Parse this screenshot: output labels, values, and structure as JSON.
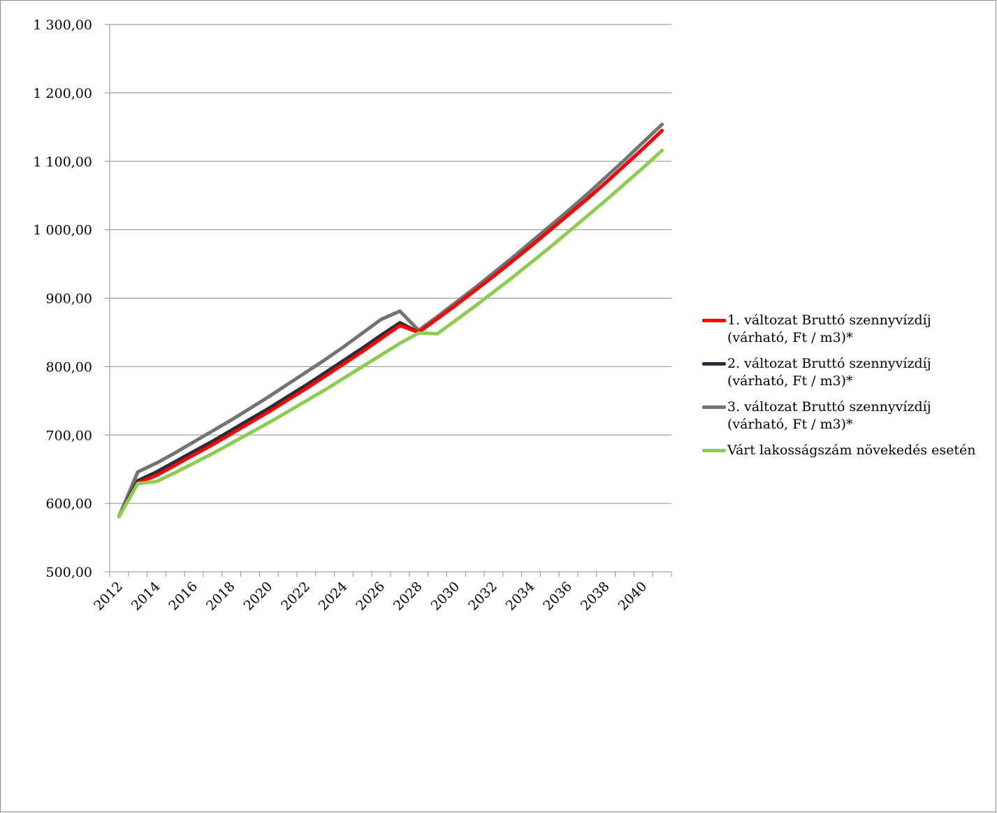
{
  "chart_data": {
    "type": "line",
    "title": "",
    "xlabel": "",
    "ylabel": "",
    "ylim": [
      500,
      1300
    ],
    "yticks": [
      "500,00",
      "600,00",
      "700,00",
      "800,00",
      "900,00",
      "1 000,00",
      "1 100,00",
      "1 200,00",
      "1 300,00"
    ],
    "xtick_labels": [
      "2012",
      "2014",
      "2016",
      "2018",
      "2020",
      "2022",
      "2024",
      "2026",
      "2028",
      "2030",
      "2032",
      "2034",
      "2036",
      "2038",
      "2040"
    ],
    "x": [
      2012,
      2013,
      2014,
      2015,
      2016,
      2017,
      2018,
      2019,
      2020,
      2021,
      2022,
      2023,
      2024,
      2025,
      2026,
      2027,
      2028,
      2029,
      2030,
      2031,
      2032,
      2033,
      2034,
      2035,
      2036,
      2037,
      2038,
      2039,
      2040,
      2041
    ],
    "grid": true,
    "legend_position": "right",
    "series": [
      {
        "name": "1. változat Bruttó szennyvízdíj (várható, Ft / m3)*",
        "color": "#ff0000",
        "values": [
          581,
          630,
          641,
          656,
          671,
          686,
          702,
          718,
          734,
          751,
          768,
          786,
          804,
          822,
          841,
          860,
          850,
          870,
          890,
          911,
          932,
          954,
          976,
          999,
          1022,
          1045,
          1069,
          1094,
          1119,
          1145
        ]
      },
      {
        "name": "2. változat Bruttó szennyvízdíj (várható, Ft / m3)*",
        "color": "#2b2b3a",
        "values": [
          581,
          633,
          646,
          661,
          676,
          691,
          707,
          723,
          739,
          756,
          773,
          791,
          809,
          827,
          846,
          864,
          850,
          870,
          890,
          911,
          932,
          954,
          976,
          999,
          1022,
          1045,
          1069,
          1094,
          1119,
          1145
        ]
      },
      {
        "name": "3. változat Bruttó szennyvízdíj (várható, Ft / m3)*",
        "color": "#737373",
        "values": [
          581,
          646,
          659,
          674,
          690,
          706,
          722,
          739,
          756,
          774,
          792,
          810,
          829,
          849,
          869,
          881,
          853,
          873,
          894,
          915,
          937,
          959,
          982,
          1005,
          1028,
          1052,
          1077,
          1102,
          1128,
          1154
        ]
      },
      {
        "name": "Várt lakosságszám növekedés esetén",
        "color": "#8ccc50",
        "values": [
          581,
          629,
          632,
          645,
          659,
          673,
          688,
          703,
          718,
          734,
          750,
          766,
          783,
          800,
          817,
          834,
          849,
          848,
          868,
          888,
          909,
          930,
          952,
          974,
          997,
          1020,
          1043,
          1067,
          1091,
          1116
        ]
      }
    ]
  }
}
